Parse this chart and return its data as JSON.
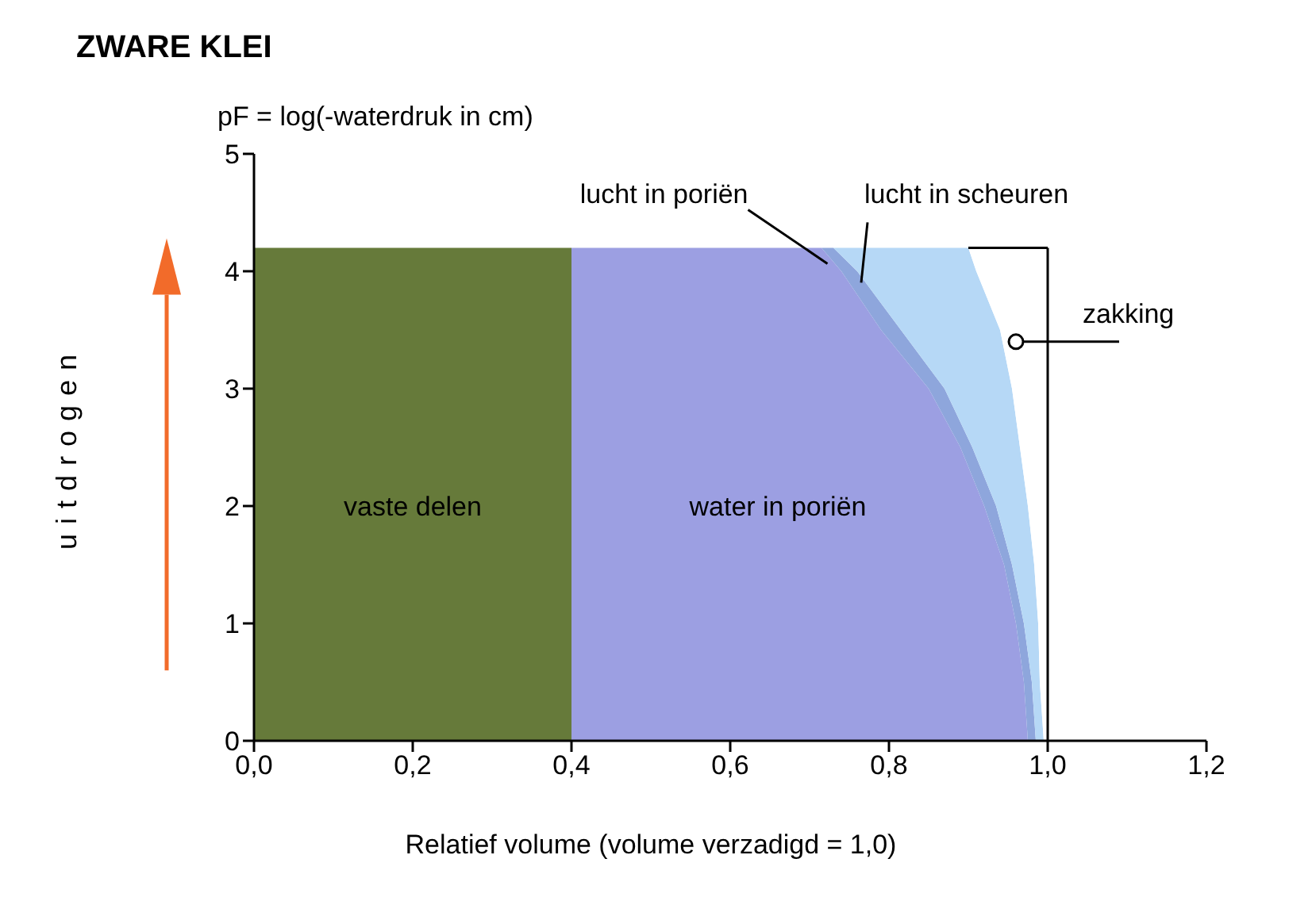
{
  "chart_data": {
    "type": "area",
    "orientation": "horizontal",
    "stacked": true,
    "title": "ZWARE KLEI",
    "xlabel": "Relatief volume (volume verzadigd = 1,0)",
    "ylabel": "pF = log(-waterdruk in cm)",
    "annotations": [
      "uitdrogen"
    ],
    "x": [
      0,
      0.5,
      1,
      1.5,
      2,
      2.5,
      3,
      3.5,
      4,
      4.2
    ],
    "series": [
      {
        "name": "vaste delen",
        "color": "#667a3a",
        "values": [
          0.4,
          0.4,
          0.4,
          0.4,
          0.4,
          0.4,
          0.4,
          0.4,
          0.4,
          0.4
        ]
      },
      {
        "name": "water in poriën",
        "color": "#9c9fe2",
        "values": [
          0.575,
          0.57,
          0.56,
          0.545,
          0.52,
          0.49,
          0.45,
          0.39,
          0.34,
          0.315
        ]
      },
      {
        "name": "lucht in poriën",
        "color": "#8ea6dc",
        "values": [
          0.01,
          0.01,
          0.01,
          0.01,
          0.015,
          0.015,
          0.02,
          0.025,
          0.02,
          0.015
        ]
      },
      {
        "name": "lucht in scheuren",
        "color": "#b6d8f6",
        "values": [
          0.01,
          0.01,
          0.018,
          0.028,
          0.04,
          0.06,
          0.085,
          0.125,
          0.15,
          0.17
        ]
      },
      {
        "name": "zakking",
        "color": "#ffffff",
        "values": [
          0.005,
          0.01,
          0.012,
          0.017,
          0.025,
          0.035,
          0.045,
          0.06,
          0.09,
          0.1
        ]
      }
    ],
    "ref_lines": [
      {
        "axis": "x",
        "value": 1.0,
        "color": "#000000"
      },
      {
        "axis": "y",
        "value": 4.2,
        "color": "#000000"
      }
    ],
    "xlim": [
      0,
      1.2
    ],
    "xticks": [
      {
        "value": 0,
        "label": "0,0"
      },
      {
        "value": 0.2,
        "label": "0,2"
      },
      {
        "value": 0.4,
        "label": "0,4"
      },
      {
        "value": 0.6,
        "label": "0,6"
      },
      {
        "value": 0.8,
        "label": "0,8"
      },
      {
        "value": 1.0,
        "label": "1,0"
      },
      {
        "value": 1.2,
        "label": "1,2"
      }
    ],
    "ylim": [
      0,
      5
    ],
    "yticks": [
      0,
      1,
      2,
      3,
      4,
      5
    ],
    "grid": false,
    "legend": false
  }
}
